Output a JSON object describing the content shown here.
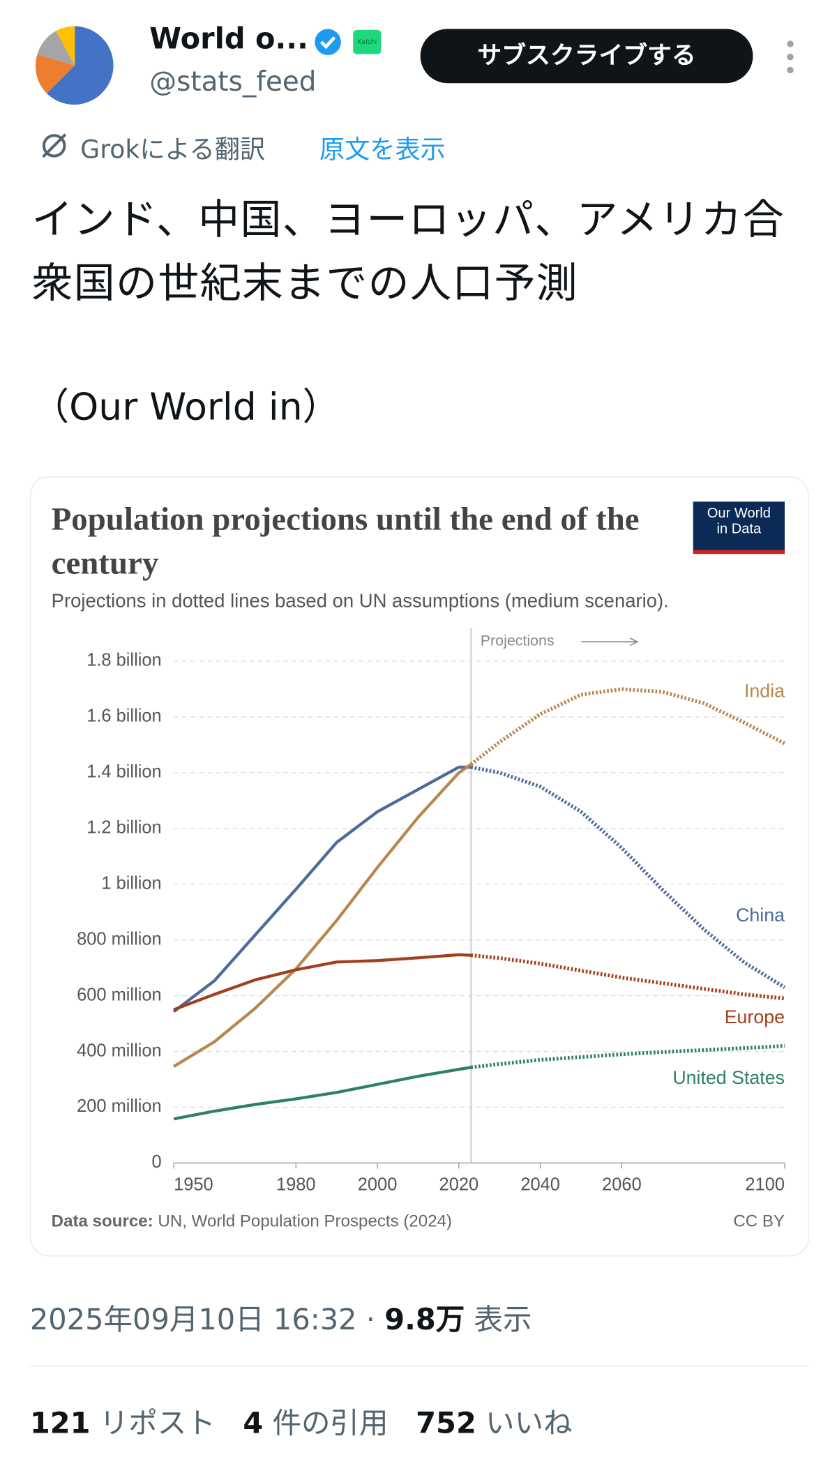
{
  "header": {
    "name": "World o...",
    "badge": "Kalshi",
    "handle": "@stats_feed",
    "subscribe": "サブスクライブする"
  },
  "translation": {
    "label": "Grokによる翻訳",
    "show_original": "原文を表示"
  },
  "text": [
    "インド、中国、ヨーロッパ、アメリカ合衆国の世紀末までの人口予測",
    "（Our World in）"
  ],
  "chart_data": {
    "type": "line",
    "title": "Population projections until the end of the century",
    "subtitle": "Projections in dotted lines based on UN assumptions (medium scenario).",
    "logo": [
      "Our World",
      "in Data"
    ],
    "projections_label": "Projections",
    "projections_from": 2023,
    "source_label": "Data source:",
    "source": "UN, World Population Prospects (2024)",
    "license": "CC BY",
    "x": [
      1950,
      1960,
      1970,
      1980,
      1990,
      2000,
      2010,
      2020,
      2023,
      2030,
      2040,
      2050,
      2060,
      2070,
      2080,
      2090,
      2100
    ],
    "xlim": [
      1950,
      2100
    ],
    "xticks": [
      1950,
      1980,
      2000,
      2020,
      2040,
      2060,
      2100
    ],
    "ylim": [
      0,
      1900000000
    ],
    "yticks": [
      {
        "value": 0,
        "label": "0"
      },
      {
        "value": 200000000,
        "label": "200 million"
      },
      {
        "value": 400000000,
        "label": "400 million"
      },
      {
        "value": 600000000,
        "label": "600 million"
      },
      {
        "value": 800000000,
        "label": "800 million"
      },
      {
        "value": 1000000000,
        "label": "1 billion"
      },
      {
        "value": 1200000000,
        "label": "1.2 billion"
      },
      {
        "value": 1400000000,
        "label": "1.4 billion"
      },
      {
        "value": 1600000000,
        "label": "1.6 billion"
      },
      {
        "value": 1800000000,
        "label": "1.8 billion"
      }
    ],
    "grid": true,
    "series": [
      {
        "name": "China",
        "color": "#4c6a9c",
        "values": [
          543000000,
          654000000,
          818000000,
          982000000,
          1150000000,
          1260000000,
          1340000000,
          1420000000,
          1420000000,
          1400000000,
          1350000000,
          1260000000,
          1130000000,
          980000000,
          840000000,
          720000000,
          630000000
        ]
      },
      {
        "name": "India",
        "color": "#b8874e",
        "values": [
          346000000,
          435000000,
          555000000,
          696000000,
          870000000,
          1060000000,
          1240000000,
          1400000000,
          1430000000,
          1510000000,
          1610000000,
          1680000000,
          1700000000,
          1690000000,
          1650000000,
          1580000000,
          1505000000
        ]
      },
      {
        "name": "Europe",
        "color": "#a2401c",
        "values": [
          550000000,
          605000000,
          657000000,
          693000000,
          721000000,
          726000000,
          736000000,
          747000000,
          745000000,
          735000000,
          715000000,
          690000000,
          665000000,
          645000000,
          625000000,
          605000000,
          590000000
        ]
      },
      {
        "name": "United States",
        "color": "#2e8161",
        "values": [
          158000000,
          186000000,
          210000000,
          230000000,
          253000000,
          282000000,
          311000000,
          336000000,
          343000000,
          355000000,
          370000000,
          380000000,
          390000000,
          398000000,
          405000000,
          412000000,
          420000000
        ]
      }
    ]
  },
  "meta": {
    "timestamp": "2025年09月10日 16:32",
    "separator": "·",
    "views": "9.8万",
    "views_label": "表示"
  },
  "stats": [
    {
      "count": "121",
      "label": "リポスト"
    },
    {
      "count": "4",
      "label": "件の引用"
    },
    {
      "count": "752",
      "label": "いいね"
    }
  ]
}
